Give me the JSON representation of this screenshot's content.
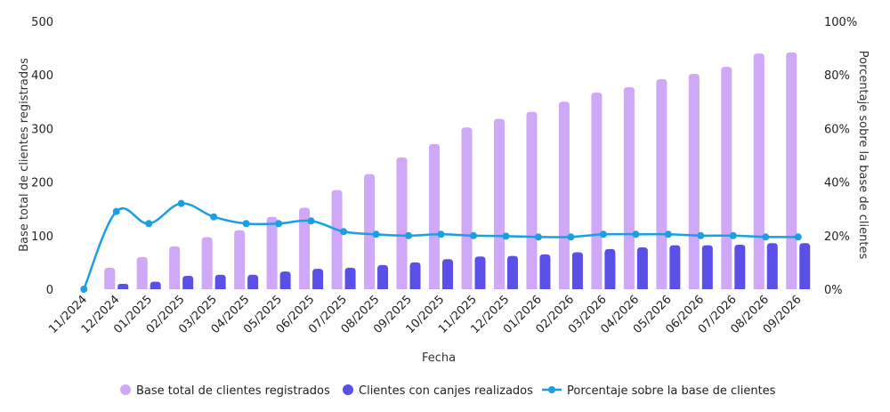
{
  "chart_data": {
    "type": "bar",
    "categories": [
      "11/2024",
      "12/2024",
      "01/2025",
      "02/2025",
      "03/2025",
      "04/2025",
      "05/2025",
      "06/2025",
      "07/2025",
      "08/2025",
      "09/2025",
      "10/2025",
      "11/2025",
      "12/2025",
      "01/2026",
      "02/2026",
      "03/2026",
      "04/2026",
      "05/2026",
      "06/2026",
      "07/2026",
      "08/2026",
      "09/2026"
    ],
    "series": [
      {
        "name": "Base total de clientes registrados",
        "kind": "bar",
        "axis": "left",
        "color": "#cfa8f7",
        "values": [
          0,
          40,
          60,
          80,
          97,
          110,
          135,
          152,
          185,
          215,
          246,
          271,
          302,
          318,
          331,
          350,
          367,
          377,
          392,
          402,
          415,
          440,
          442
        ]
      },
      {
        "name": "Clientes con canjes realizados",
        "kind": "bar",
        "axis": "left",
        "color": "#5a4fe6",
        "values": [
          0,
          10,
          14,
          25,
          27,
          27,
          33,
          38,
          40,
          45,
          50,
          56,
          61,
          62,
          65,
          69,
          75,
          78,
          82,
          82,
          83,
          86,
          86
        ]
      },
      {
        "name": "Porcentaje sobre la base de clientes",
        "kind": "line",
        "axis": "right",
        "color": "#1a9fe3",
        "values": [
          0,
          29,
          24.5,
          32,
          27,
          24.5,
          24.5,
          25.5,
          21.5,
          20.5,
          20,
          20.5,
          20,
          19.8,
          19.5,
          19.5,
          20.5,
          20.5,
          20.5,
          20,
          20,
          19.5,
          19.5
        ]
      }
    ],
    "xlabel": "Fecha",
    "ylabel": "Base total de clientes registrados",
    "y2label": "Porcentaje sobre la base de clientes",
    "ylim": [
      0,
      500
    ],
    "y2lim": [
      0,
      100
    ],
    "yticks": [
      "0",
      "100",
      "200",
      "300",
      "400",
      "500"
    ],
    "y2ticks": [
      "0%",
      "20%",
      "40%",
      "60%",
      "80%",
      "100%"
    ],
    "grid": false,
    "legend": "bottom-center"
  }
}
